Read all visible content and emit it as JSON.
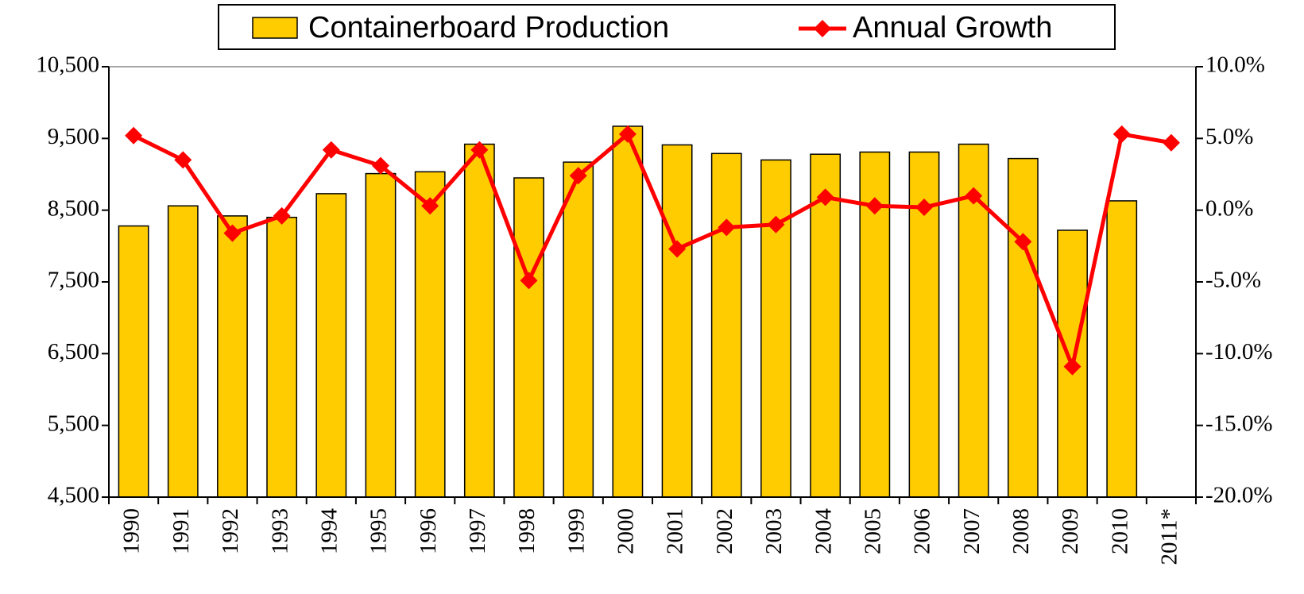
{
  "chart_data": {
    "type": "bar_line",
    "categories": [
      "1990",
      "1991",
      "1992",
      "1993",
      "1994",
      "1995",
      "1996",
      "1997",
      "1998",
      "1999",
      "2000",
      "2001",
      "2002",
      "2003",
      "2004",
      "2005",
      "2006",
      "2007",
      "2008",
      "2009",
      "2010",
      "2011*"
    ],
    "series": [
      {
        "name": "Containerboard Production",
        "color": "#ffcc00",
        "type": "bar",
        "values": [
          8280,
          8560,
          8420,
          8400,
          8730,
          9010,
          9035,
          9420,
          8950,
          9170,
          9670,
          9410,
          9290,
          9200,
          9280,
          9310,
          9310,
          9420,
          9220,
          8220,
          8630,
          null
        ]
      },
      {
        "name": "Annual Growth",
        "color": "#ff0000",
        "type": "line",
        "axis": "y2",
        "values": [
          5.2,
          3.5,
          -1.6,
          -0.4,
          4.2,
          3.1,
          0.3,
          4.2,
          -4.9,
          2.4,
          5.3,
          -2.7,
          -1.2,
          -1.0,
          0.9,
          0.3,
          0.2,
          1.0,
          -2.2,
          -10.9,
          5.3,
          4.7
        ]
      }
    ],
    "ylim": [
      4500,
      10500
    ],
    "yticks": [
      {
        "value": 4500,
        "label": "4,500"
      },
      {
        "value": 5500,
        "label": "5,500"
      },
      {
        "value": 6500,
        "label": "6,500"
      },
      {
        "value": 7500,
        "label": "7,500"
      },
      {
        "value": 8500,
        "label": "8,500"
      },
      {
        "value": 9500,
        "label": "9,500"
      },
      {
        "value": 10500,
        "label": "10,500"
      }
    ],
    "y2lim": [
      -20,
      10
    ],
    "y2ticks": [
      {
        "value": -20,
        "label": "-20.0%"
      },
      {
        "value": -15,
        "label": "-15.0%"
      },
      {
        "value": -10,
        "label": "-10.0%"
      },
      {
        "value": -5,
        "label": "-5.0%"
      },
      {
        "value": 0,
        "label": "0.0%"
      },
      {
        "value": 5,
        "label": "5.0%"
      },
      {
        "value": 10,
        "label": "10.0%"
      }
    ],
    "legend": "top"
  }
}
